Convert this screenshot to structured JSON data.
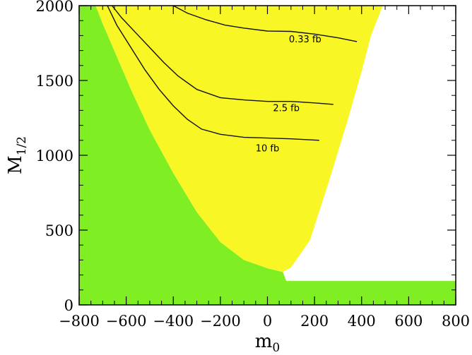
{
  "chart_data": {
    "type": "area",
    "title": "",
    "xlabel": "m",
    "xlabel_sub": "0",
    "ylabel": "M",
    "ylabel_sub": "1/2",
    "xlim": [
      -800,
      800
    ],
    "ylim": [
      0,
      2000
    ],
    "x_ticks": [
      -800,
      -600,
      -400,
      -200,
      0,
      200,
      400,
      600,
      800
    ],
    "x_tick_labels": [
      "−800",
      "−600",
      "−400",
      "−200",
      "0",
      "200",
      "400",
      "600",
      "800"
    ],
    "y_ticks": [
      0,
      500,
      1000,
      1500,
      2000
    ],
    "y_tick_labels": [
      "0",
      "500",
      "1000",
      "1500",
      "2000"
    ],
    "grid": false,
    "regions": [
      {
        "id": "green",
        "color": "#7fef23",
        "points": [
          [
            -800,
            0
          ],
          [
            800,
            0
          ],
          [
            800,
            160
          ],
          [
            80,
            160
          ],
          [
            65,
            220
          ],
          [
            0,
            245
          ],
          [
            -100,
            300
          ],
          [
            -200,
            420
          ],
          [
            -300,
            620
          ],
          [
            -400,
            880
          ],
          [
            -500,
            1170
          ],
          [
            -580,
            1440
          ],
          [
            -640,
            1660
          ],
          [
            -700,
            1880
          ],
          [
            -730,
            2000
          ],
          [
            -800,
            2000
          ]
        ]
      },
      {
        "id": "yellow",
        "color": "#f9f626",
        "points": [
          [
            -730,
            2000
          ],
          [
            -700,
            1880
          ],
          [
            -640,
            1660
          ],
          [
            -580,
            1440
          ],
          [
            -500,
            1170
          ],
          [
            -400,
            880
          ],
          [
            -300,
            620
          ],
          [
            -200,
            420
          ],
          [
            -100,
            300
          ],
          [
            0,
            245
          ],
          [
            65,
            220
          ],
          [
            100,
            250
          ],
          [
            180,
            430
          ],
          [
            260,
            820
          ],
          [
            340,
            1230
          ],
          [
            400,
            1560
          ],
          [
            440,
            1800
          ],
          [
            480,
            1960
          ],
          [
            490,
            2000
          ]
        ]
      }
    ],
    "series": [
      {
        "label": "0.33 fb",
        "x": [
          -400,
          -340,
          -260,
          -180,
          -100,
          0,
          100,
          200,
          300,
          380
        ],
        "y": [
          2000,
          1950,
          1905,
          1870,
          1850,
          1830,
          1828,
          1810,
          1785,
          1760
        ]
      },
      {
        "label": "2.5 fb",
        "x": [
          -660,
          -620,
          -560,
          -500,
          -440,
          -380,
          -300,
          -200,
          -100,
          0,
          100,
          200,
          280
        ],
        "y": [
          2000,
          1920,
          1820,
          1720,
          1620,
          1530,
          1440,
          1385,
          1370,
          1360,
          1360,
          1350,
          1340
        ]
      },
      {
        "label": "10 fb",
        "x": [
          -680,
          -640,
          -580,
          -520,
          -460,
          -400,
          -340,
          -280,
          -200,
          -100,
          0,
          100,
          220
        ],
        "y": [
          2000,
          1870,
          1720,
          1570,
          1440,
          1330,
          1240,
          1175,
          1140,
          1120,
          1115,
          1110,
          1100
        ]
      }
    ],
    "contour_labels": [
      {
        "text": "0.33 fb",
        "x": 160,
        "y": 1755
      },
      {
        "text": "2.5 fb",
        "x": 80,
        "y": 1295
      },
      {
        "text": "10 fb",
        "x": 0,
        "y": 1025
      }
    ]
  }
}
